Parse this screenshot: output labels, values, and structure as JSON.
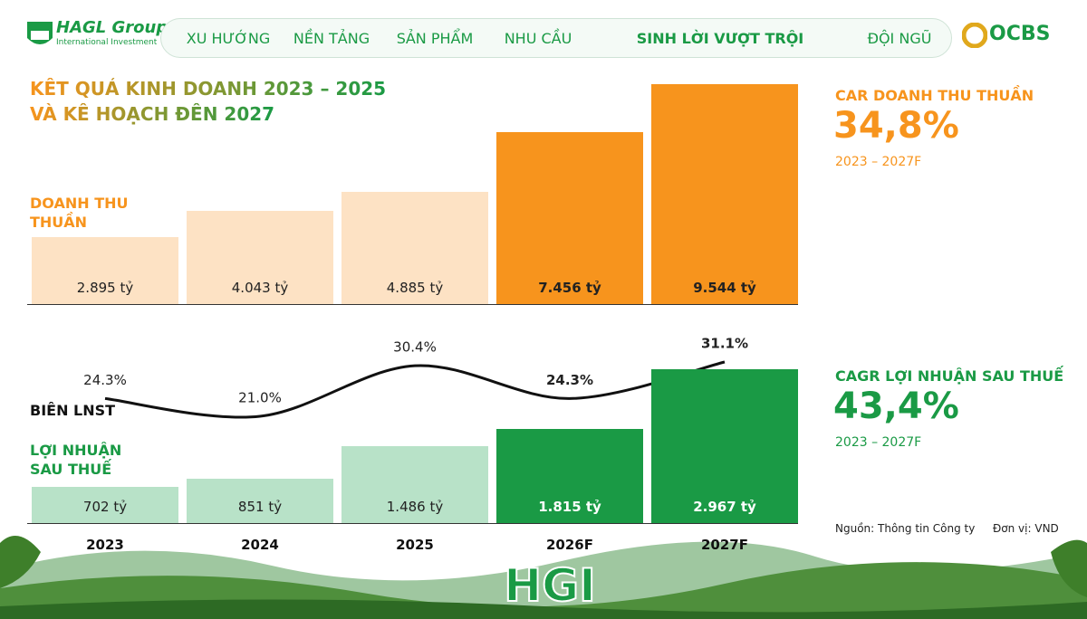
{
  "header": {
    "logo": "HAGL Group",
    "logo_sub": "International Investment",
    "nav": [
      "XU HƯỚNG",
      "NỀN TẢNG",
      "SẢN PHẨM",
      "NHU CẦU",
      "SINH LỜI VƯỢT TRỘI",
      "ĐỘI NGŨ"
    ],
    "partner": "OCBS"
  },
  "title": [
    "KẾT QUẢ KINH DOANH 2023 – 2025",
    "VÀ KẾ HOẠCH ĐẾN 2027"
  ],
  "chart_data": {
    "type": "combo",
    "categories": [
      "2023",
      "2024",
      "2025",
      "2026F",
      "2027F"
    ],
    "series": [
      {
        "name": "DOANH THU THUẦN",
        "type": "bar",
        "color": "#f7941d",
        "colors": [
          "#fde2c4",
          "#fde2c4",
          "#fde2c4",
          "#f7941d",
          "#f7941d"
        ],
        "values": [
          2895,
          4043,
          4885,
          7456,
          9544
        ],
        "value_labels": [
          "2.895 tỷ",
          "4.043 tỷ",
          "4.885 tỷ",
          "7.456 tỷ",
          "9.544 tỷ"
        ]
      },
      {
        "name": "LỢI NHUẬN SAU THUẾ",
        "type": "bar",
        "color": "#1a9a45",
        "colors": [
          "#b8e2c8",
          "#b8e2c8",
          "#b8e2c8",
          "#1a9a45",
          "#1a9a45"
        ],
        "values": [
          702,
          851,
          1486,
          1815,
          2967
        ],
        "value_labels": [
          "702 tỷ",
          "851 tỷ",
          "1.486 tỷ",
          "1.815 tỷ",
          "2.967 tỷ"
        ]
      },
      {
        "name": "BIÊN LNST",
        "type": "line",
        "color": "#111111",
        "values": [
          24.3,
          21.0,
          30.4,
          24.3,
          31.1
        ],
        "value_labels": [
          "24.3%",
          "21.0%",
          "30.4%",
          "24.3%",
          "31.1%"
        ]
      }
    ]
  },
  "kpis": [
    {
      "label": "CAR DOANH THU THUẦN",
      "value": "34,8%",
      "period": "2023 – 2027F",
      "color": "#f7941d"
    },
    {
      "label": "CAGR LỢI NHUẬN SAU THUẾ",
      "value": "43,4%",
      "period": "2023 – 2027F",
      "color": "#1a9a45"
    }
  ],
  "notes": {
    "source": "Nguồn: Thông tin Công ty",
    "unit": "Đơn vị: VND"
  },
  "footer_logo": "HGI"
}
